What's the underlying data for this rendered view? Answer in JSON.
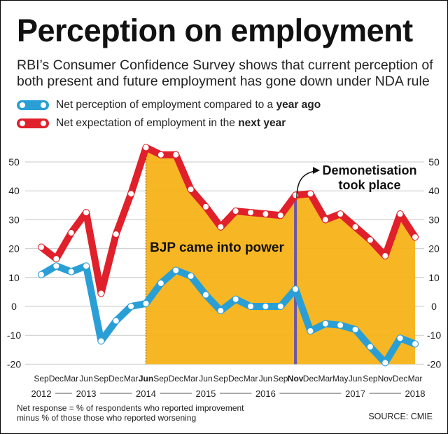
{
  "title": "Perception on employment",
  "subtitle": "RBI’s Consumer Confidence Survey shows that current perception of both present and future employment has gone down under NDA rule",
  "legend": [
    {
      "prefix": "Net perception of employment compared to a ",
      "bold": "year ago",
      "color": "#2a9fd6"
    },
    {
      "prefix": "Net expectation of employment in the ",
      "bold": "next year",
      "color": "#e0202a"
    }
  ],
  "colors": {
    "blue": "#2a9fd6",
    "red": "#e0202a",
    "shade": "#f7b217",
    "marker": "#6a55a8"
  },
  "annotations": {
    "power": "BJP came into power",
    "demonetisation_line1": "Demonetisation",
    "demonetisation_line2": "took place"
  },
  "footnote_line1": "Net response =  % of respondents who reported improvement",
  "footnote_line2": "minus % of those those who reported worsening",
  "source": "SOURCE: CMIE",
  "chart_data": {
    "type": "line",
    "categories": [
      "Sep",
      "Dec",
      "Mar",
      "Jun",
      "Sep",
      "Dec",
      "Mar",
      "Jun",
      "Sep",
      "Dec",
      "Mar",
      "Jun",
      "Sep",
      "Dec",
      "Mar",
      "Jun",
      "Sep",
      "Nov",
      "Dec",
      "Mar",
      "May",
      "Jun",
      "Sep",
      "Nov",
      "Dec",
      "Mar"
    ],
    "bold_categories": [
      "Jun",
      "Nov"
    ],
    "bold_indices": [
      7,
      17
    ],
    "years": [
      "2012",
      "2013",
      "2014",
      "2015",
      "2016",
      "2017",
      "2018"
    ],
    "year_positions": [
      0,
      3,
      7,
      11,
      15,
      21,
      25
    ],
    "series": [
      {
        "name": "Net perception of employment compared to a year ago",
        "color": "#2a9fd6",
        "values": [
          11,
          14,
          12,
          14,
          -12,
          -5,
          0,
          1,
          8,
          12.5,
          10.5,
          4,
          -1.5,
          2.5,
          0,
          0,
          0,
          6,
          -8.5,
          -6,
          -6.5,
          -8,
          -14,
          -19.5,
          -11,
          -13
        ]
      },
      {
        "name": "Net expectation of employment in the next year",
        "color": "#e0202a",
        "values": [
          20.5,
          16.5,
          25.5,
          32.5,
          4.5,
          25,
          39,
          55,
          52.5,
          52.5,
          40.5,
          34.5,
          27.5,
          33,
          32.5,
          32,
          31.5,
          38.5,
          39,
          30,
          32,
          27.5,
          23,
          17.5,
          32,
          24
        ]
      }
    ],
    "yticks": [
      -20,
      -10,
      0,
      10,
      20,
      30,
      40,
      50
    ],
    "ylim": [
      -20,
      55
    ],
    "shade_from_index": 7,
    "demonetisation_index": 17
  }
}
